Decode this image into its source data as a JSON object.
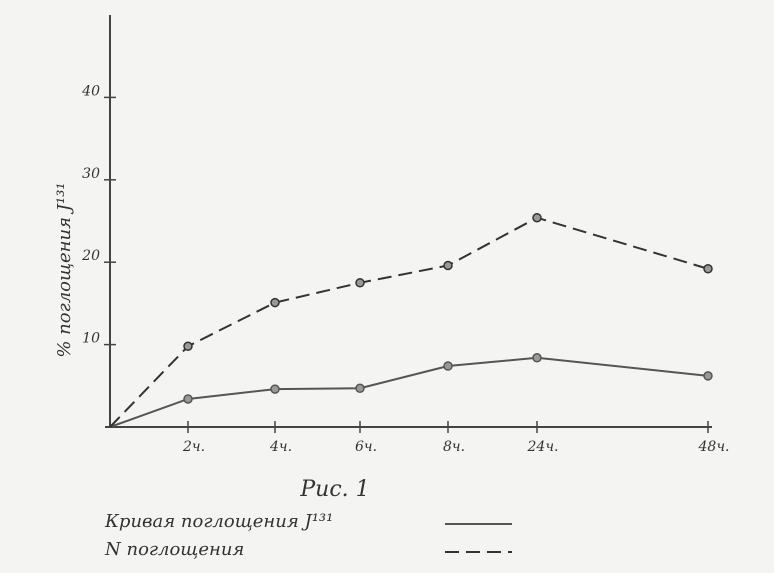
{
  "chart_data": {
    "type": "line",
    "title": "Рис. 1",
    "y_label": "% поглощения J¹³¹",
    "categories": [
      null,
      "2ч.",
      "4ч.",
      "6ч.",
      "8ч.",
      "24ч.",
      "48ч."
    ],
    "series": [
      {
        "name": "Кривая поглощения J¹³¹",
        "color": "#555555",
        "dash": false,
        "values": [
          0,
          3.4,
          4.6,
          4.7,
          7.4,
          8.4,
          6.2
        ]
      },
      {
        "name": "N поглощения",
        "color": "#333333",
        "dash": true,
        "values": [
          0,
          9.8,
          15.1,
          17.5,
          19.6,
          25.4,
          19.2
        ]
      }
    ],
    "ylim": [
      0,
      50
    ],
    "yticks": [
      10,
      20,
      30,
      40
    ],
    "grid": false
  }
}
